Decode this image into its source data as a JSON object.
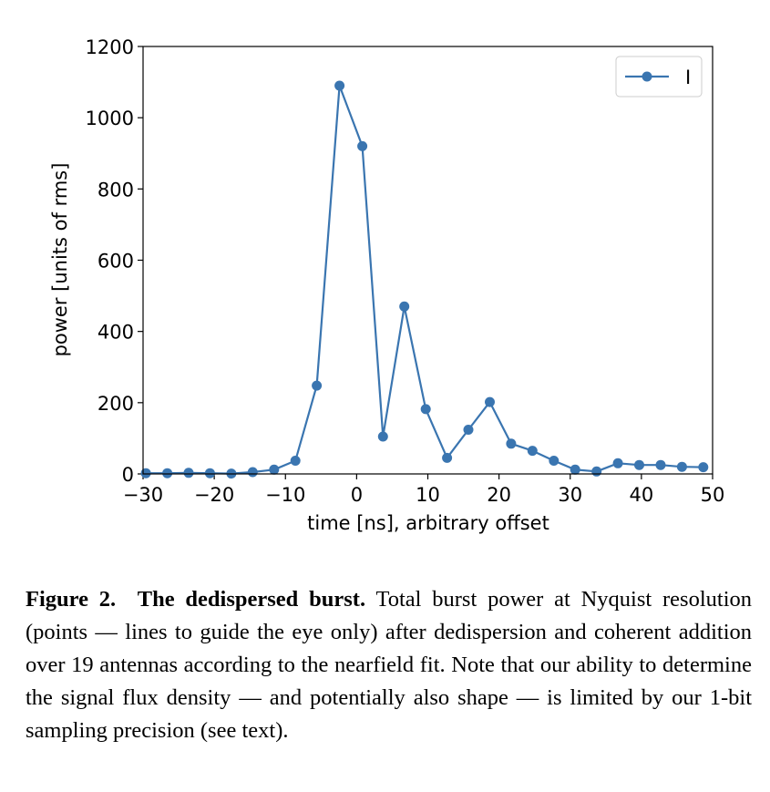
{
  "chart_data": {
    "type": "line",
    "xlabel": "time [ns], arbitrary offset",
    "ylabel": "power [units of rms]",
    "xlim": [
      -30,
      50
    ],
    "ylim": [
      0,
      1200
    ],
    "x_ticks": [
      -30,
      -20,
      -10,
      0,
      10,
      20,
      30,
      40,
      50
    ],
    "x_tick_labels": [
      "−30",
      "−20",
      "−10",
      "0",
      "10",
      "20",
      "30",
      "40",
      "50"
    ],
    "y_ticks": [
      0,
      200,
      400,
      600,
      800,
      1000,
      1200
    ],
    "y_tick_labels": [
      "0",
      "200",
      "400",
      "600",
      "800",
      "1000",
      "1200"
    ],
    "grid": false,
    "legend_position": "top-right",
    "series": [
      {
        "name": "I",
        "color": "#3a75b0",
        "marker": "circle",
        "points": [
          [
            -29.6,
            2
          ],
          [
            -26.6,
            2
          ],
          [
            -23.6,
            3
          ],
          [
            -20.6,
            2
          ],
          [
            -17.6,
            1
          ],
          [
            -14.6,
            5
          ],
          [
            -11.6,
            12
          ],
          [
            -8.6,
            37
          ],
          [
            -5.6,
            248
          ],
          [
            -2.4,
            1090
          ],
          [
            0.8,
            920
          ],
          [
            3.7,
            105
          ],
          [
            6.7,
            470
          ],
          [
            9.7,
            182
          ],
          [
            12.7,
            45
          ],
          [
            15.7,
            124
          ],
          [
            18.7,
            202
          ],
          [
            21.7,
            85
          ],
          [
            24.7,
            65
          ],
          [
            27.7,
            37
          ],
          [
            30.7,
            12
          ],
          [
            33.7,
            7
          ],
          [
            36.7,
            30
          ],
          [
            39.7,
            25
          ],
          [
            42.7,
            25
          ],
          [
            45.7,
            20
          ],
          [
            48.7,
            19
          ]
        ]
      }
    ]
  },
  "caption": {
    "label": "Figure 2.",
    "title": "The dedispersed burst.",
    "text": "Total burst power at Nyquist resolution (points — lines to guide the eye only) after dedispersion and coherent addition over 19 antennas according to the nearfield fit. Note that our ability to determine the signal flux density — and potentially also shape — is limited by our 1-bit sampling precision (see text)."
  }
}
